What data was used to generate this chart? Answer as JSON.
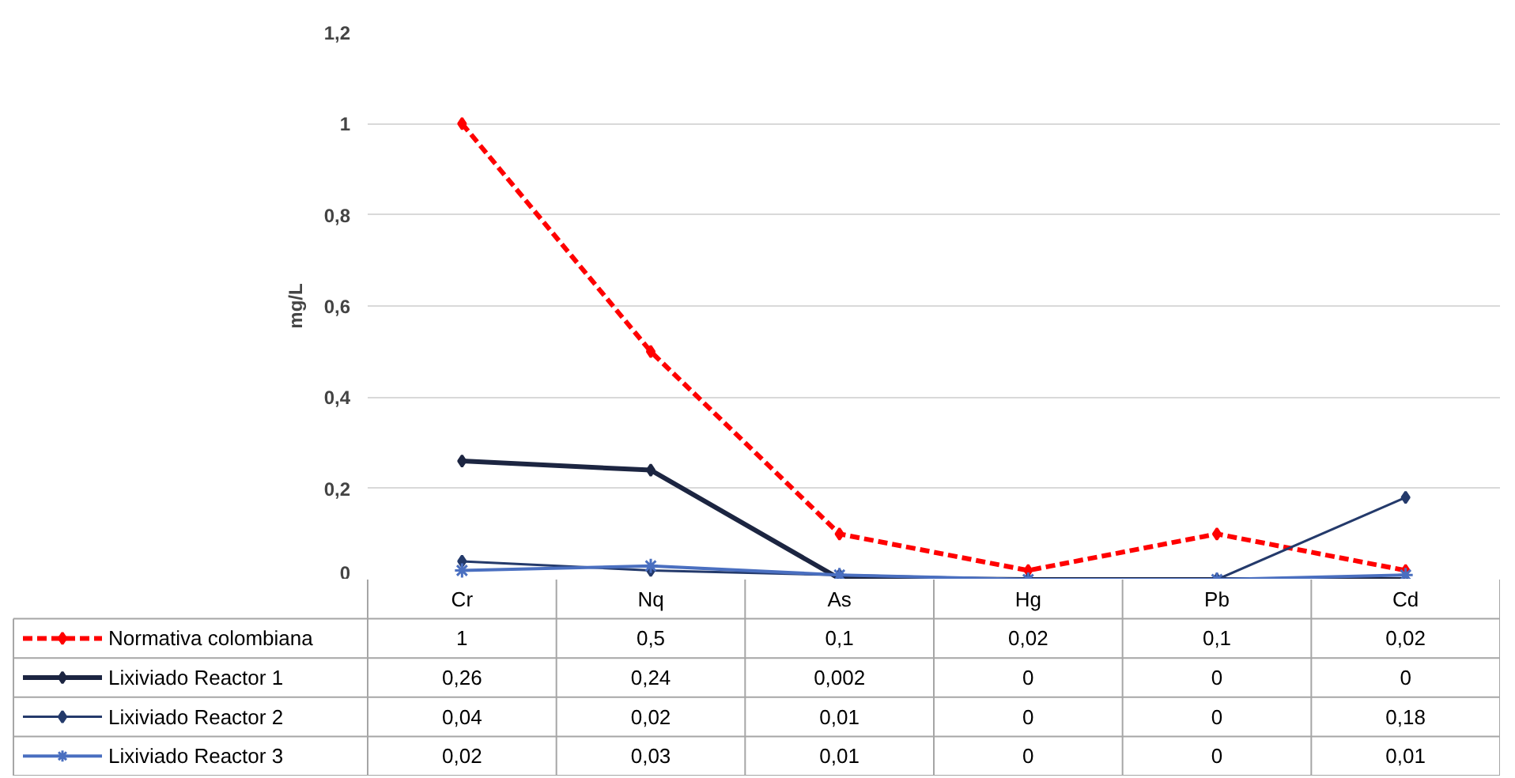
{
  "chart_data": {
    "type": "line",
    "ylabel": "mg/L",
    "categories": [
      "Cr",
      "Nq",
      "As",
      "Hg",
      "Pb",
      "Cd"
    ],
    "ylim": [
      0,
      1.2
    ],
    "yticks": [
      {
        "value": 0,
        "label": "0"
      },
      {
        "value": 0.2,
        "label": "0,2"
      },
      {
        "value": 0.4,
        "label": "0,4"
      },
      {
        "value": 0.6,
        "label": "0,6"
      },
      {
        "value": 0.8,
        "label": "0,8"
      },
      {
        "value": 1,
        "label": "1"
      },
      {
        "value": 1.2,
        "label": "1,2"
      }
    ],
    "grid": "y",
    "legend": "bottom",
    "series": [
      {
        "name": "Normativa colombiana",
        "color": "#ff0000",
        "line_style": "dashed",
        "marker": "diamond",
        "values": [
          1,
          0.5,
          0.1,
          0.02,
          0.1,
          0.02
        ],
        "value_labels": [
          "1",
          "0,5",
          "0,1",
          "0,02",
          "0,1",
          "0,02"
        ]
      },
      {
        "name": "Lixiviado Reactor 1",
        "color": "#1c2541",
        "line_style": "solid",
        "marker": "diamond",
        "values": [
          0.26,
          0.24,
          0.002,
          0,
          0,
          0
        ],
        "value_labels": [
          "0,26",
          "0,24",
          "0,002",
          "0",
          "0",
          "0"
        ]
      },
      {
        "name": "Lixiviado Reactor 2",
        "color": "#243a6b",
        "line_style": "solid",
        "marker": "diamond",
        "values": [
          0.04,
          0.02,
          0.01,
          0,
          0,
          0.18
        ],
        "value_labels": [
          "0,04",
          "0,02",
          "0,01",
          "0",
          "0",
          "0,18"
        ]
      },
      {
        "name": "Lixiviado Reactor 3",
        "color": "#4a6fc0",
        "line_style": "solid",
        "marker": "cross",
        "values": [
          0.02,
          0.03,
          0.01,
          0,
          0,
          0.01
        ],
        "value_labels": [
          "0,02",
          "0,03",
          "0,01",
          "0",
          "0",
          "0,01"
        ]
      }
    ]
  }
}
